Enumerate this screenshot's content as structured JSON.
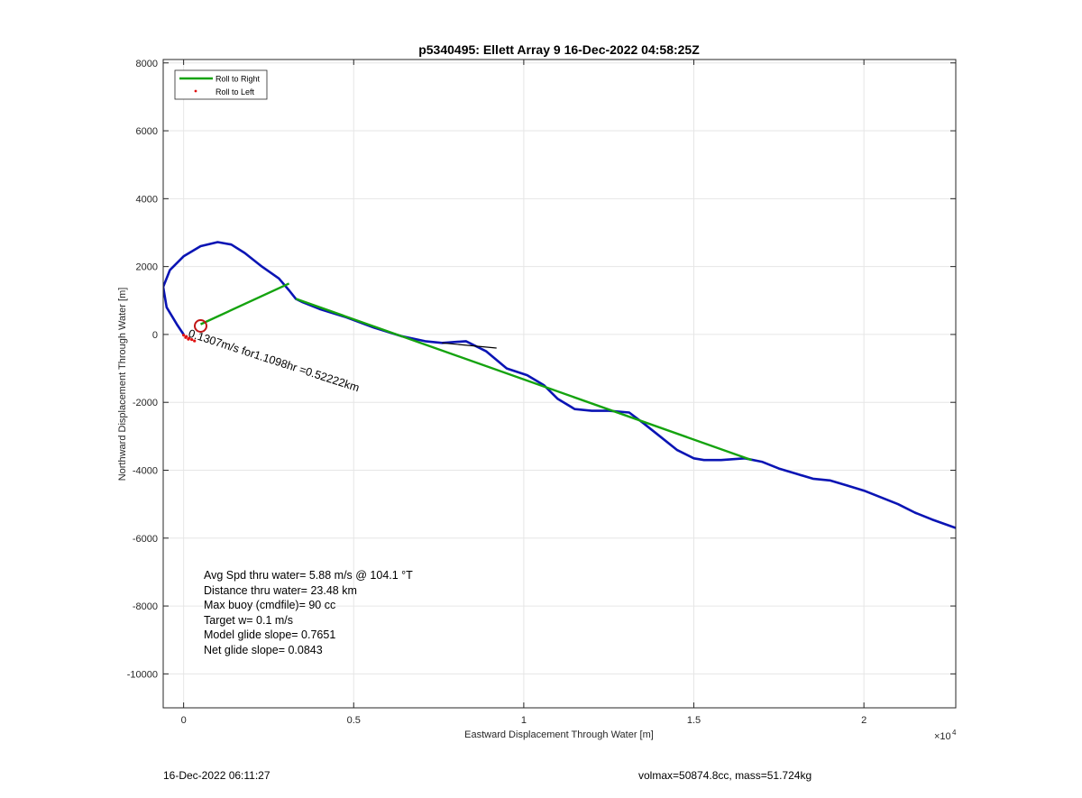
{
  "colors": {
    "trajectory": "#0a14b4",
    "roll_right": "#15a30f",
    "roll_left": "#e01010",
    "marker": "#c01515",
    "drift_segment": "#000000",
    "grid": "#e6e6e6",
    "axes": "#262626"
  },
  "chart_data": {
    "type": "line",
    "title": "p5340495: Ellett Array 9 16-Dec-2022 04:58:25Z",
    "xlabel": "Eastward Displacement Through Water [m]",
    "ylabel": "Northward Displacement Through Water [m]",
    "x_exponent_label": "×10",
    "x_exponent_power": "4",
    "xlim": [
      -600,
      22700
    ],
    "ylim": [
      -11000,
      8100
    ],
    "grid": true,
    "legend_position": "top-left",
    "x_ticks": [
      0,
      5000,
      10000,
      15000,
      20000
    ],
    "x_tick_labels": [
      "0",
      "0.5",
      "1",
      "1.5",
      "2"
    ],
    "y_ticks": [
      -10000,
      -8000,
      -6000,
      -4000,
      -2000,
      0,
      2000,
      4000,
      6000,
      8000
    ],
    "y_tick_labels": [
      "-10000",
      "-8000",
      "-6000",
      "-4000",
      "-2000",
      "0",
      "2000",
      "4000",
      "6000",
      "8000"
    ],
    "legend": [
      {
        "name": "Roll to Right",
        "style": "line"
      },
      {
        "name": "Roll to Left",
        "style": "dot"
      }
    ],
    "trajectory": {
      "x": [
        0,
        -200,
        -500,
        -600,
        -400,
        0,
        500,
        1000,
        1400,
        1800,
        2300,
        2800,
        3100,
        3300,
        3500,
        4000,
        4800,
        5600,
        6400,
        7100,
        7600,
        8300,
        8900,
        9500,
        10100,
        10600,
        11000,
        11500,
        12000,
        12500,
        13100,
        13500,
        14000,
        14500,
        15000,
        15300,
        15800,
        16500,
        17000,
        17500,
        18000,
        18500,
        19000,
        19500,
        20000,
        20500,
        21000,
        21500,
        22000,
        22700
      ],
      "y": [
        0,
        300,
        800,
        1400,
        1900,
        2300,
        2600,
        2720,
        2650,
        2400,
        2000,
        1650,
        1300,
        1050,
        950,
        750,
        500,
        200,
        -50,
        -200,
        -250,
        -200,
        -500,
        -1000,
        -1200,
        -1500,
        -1900,
        -2200,
        -2250,
        -2250,
        -2300,
        -2600,
        -3000,
        -3400,
        -3650,
        -3700,
        -3700,
        -3650,
        -3750,
        -3950,
        -4100,
        -4250,
        -4300,
        -4450,
        -4600,
        -4800,
        -5000,
        -5250,
        -5450,
        -5700
      ]
    },
    "roll_right_segments": [
      {
        "x": [
          500,
          3100
        ],
        "y": [
          300,
          1500
        ]
      },
      {
        "x": [
          3300,
          16700
        ],
        "y": [
          1050,
          -3700
        ]
      }
    ],
    "drift_segment": {
      "x": [
        7600,
        9200
      ],
      "y": [
        -250,
        -400
      ]
    },
    "start_marker": {
      "x": 500,
      "y": 250
    },
    "roll_left_points": {
      "x": [
        0,
        80,
        160,
        240,
        320,
        60,
        140
      ],
      "y": [
        -20,
        -60,
        -110,
        -150,
        -190,
        -90,
        -140
      ]
    },
    "current_annotation": {
      "text": "0.1307m/s for1.1098hr =0.52222km",
      "x": 120,
      "y": -60,
      "rotation_deg": 18
    },
    "stats": [
      "Avg Spd thru water=  5.88 m/s @ 104.1 °T",
      "Distance thru water= 23.48 km",
      "Max buoy (cmdfile)= 90 cc",
      "Target w= 0.1 m/s",
      "Model glide slope= 0.7651",
      "Net glide slope= 0.0843"
    ]
  },
  "footer": {
    "timestamp": "16-Dec-2022 06:11:27",
    "volmax_mass": "volmax=50874.8cc, mass=51.724kg"
  }
}
